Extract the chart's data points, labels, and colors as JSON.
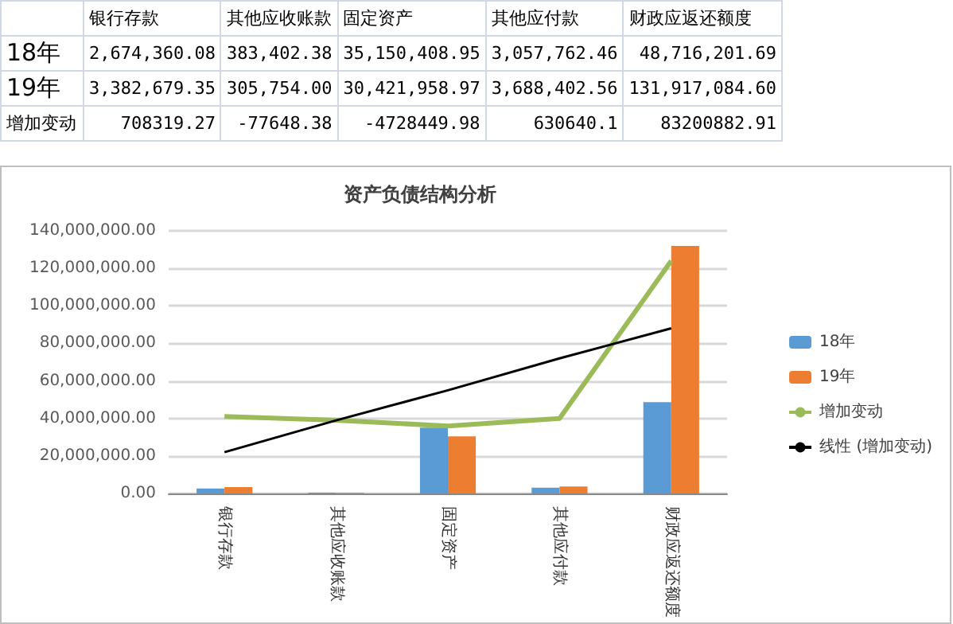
{
  "chart_data": [
    {
      "type": "other",
      "categories": [
        "银行存款",
        "其他应收账款",
        "固定资产",
        "其他应付款",
        "财政应返还额度"
      ],
      "y_categories": [
        "18年",
        "19年",
        "增加变动"
      ],
      "cell_labels": [
        [
          "2,674,360.08",
          "383,402.38",
          "35,150,408.95",
          "3,057,762.46",
          "48,716,201.69"
        ],
        [
          "3,382,679.35",
          "305,754.00",
          "30,421,958.97",
          "3,688,402.56",
          "131,917,084.60"
        ],
        [
          "708319.27",
          "-77648.38",
          "-4728449.98",
          "630640.1",
          "83200882.91"
        ]
      ]
    },
    {
      "type": "bar",
      "title": "资产负债结构分析",
      "categories": [
        "银行存款",
        "其他应收账款",
        "固定资产",
        "其他应付款",
        "财政应返还额度"
      ],
      "series": [
        {
          "name": "18年",
          "color": "#5b9bd5",
          "values": [
            2674360.08,
            383402.38,
            35150408.95,
            3057762.46,
            48716201.69
          ]
        },
        {
          "name": "19年",
          "color": "#ed7d31",
          "values": [
            3382679.35,
            305754.0,
            30421958.97,
            3688402.56,
            131917084.6
          ]
        },
        {
          "name": "增加变动",
          "type": "line",
          "color": "#9bbb59",
          "values": [
            41000000,
            39000000,
            36000000,
            40000000,
            124000000
          ]
        },
        {
          "name": "线性 (增加变动)",
          "type": "line",
          "color": "#000000",
          "values": [
            22000000,
            39000000,
            55000000,
            72000000,
            88000000
          ]
        }
      ],
      "ylim": [
        0,
        140000000
      ],
      "yticks": [
        {
          "value": 0,
          "label": "0.00"
        },
        {
          "value": 20000000,
          "label": "20,000,000.00"
        },
        {
          "value": 40000000,
          "label": "40,000,000.00"
        },
        {
          "value": 60000000,
          "label": "60,000,000.00"
        },
        {
          "value": 80000000,
          "label": "80,000,000.00"
        },
        {
          "value": 100000000,
          "label": "100,000,000.00"
        },
        {
          "value": 120000000,
          "label": "120,000,000.00"
        },
        {
          "value": 140000000,
          "label": "140,000,000.00"
        }
      ],
      "grid": "y",
      "legend": "right",
      "marker": "none"
    }
  ]
}
